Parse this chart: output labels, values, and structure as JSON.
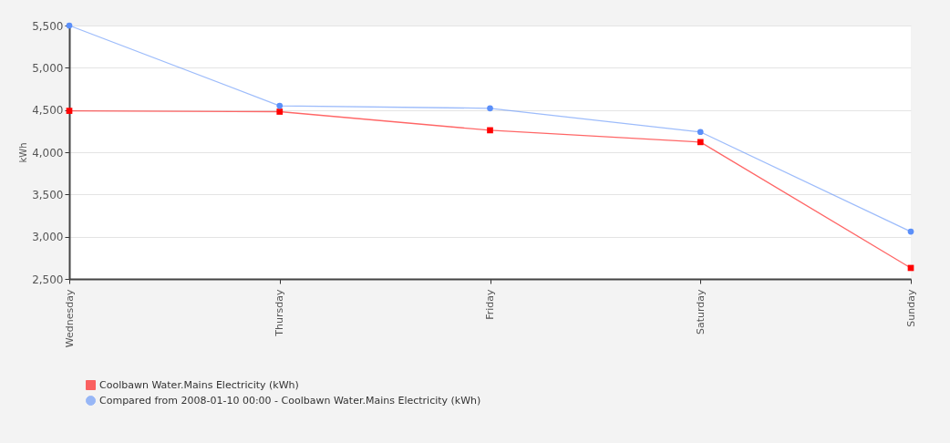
{
  "chart_data": {
    "type": "line",
    "ylabel": "kWh",
    "categories": [
      "Wednesday",
      "Thursday",
      "Friday",
      "Saturday",
      "Sunday"
    ],
    "series": [
      {
        "name": "Coolbawn Water.Mains Electricity (kWh)",
        "color": "#ff0000",
        "marker": "square",
        "values": [
          4490,
          4480,
          4260,
          4120,
          2630
        ]
      },
      {
        "name": "Compared from 2008-01-10 00:00 - Coolbawn Water.Mains Electricity (kWh)",
        "color": "#5b8ff9",
        "marker": "circle",
        "values": [
          5500,
          4550,
          4520,
          4240,
          3060
        ]
      }
    ],
    "ylim": [
      2500,
      5500
    ],
    "yticks": [
      {
        "value": 2500,
        "label": "2,500"
      },
      {
        "value": 3000,
        "label": "3,000"
      },
      {
        "value": 3500,
        "label": "3,500"
      },
      {
        "value": 4000,
        "label": "4,000"
      },
      {
        "value": 4500,
        "label": "4,500"
      },
      {
        "value": 5000,
        "label": "5,000"
      },
      {
        "value": 5500,
        "label": "5,500"
      }
    ],
    "grid": "y",
    "legend": "bottom"
  }
}
